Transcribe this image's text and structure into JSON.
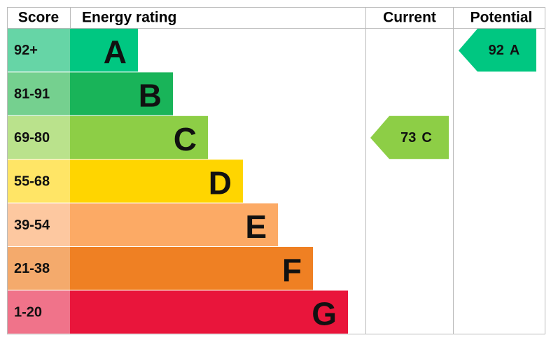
{
  "header": {
    "score": "Score",
    "energy_rating": "Energy rating",
    "current": "Current",
    "potential": "Potential"
  },
  "bands": [
    {
      "score": "92+",
      "letter": "A",
      "color": "#00c781",
      "light_color": "#66d5a6"
    },
    {
      "score": "81-91",
      "letter": "B",
      "color": "#19b459",
      "light_color": "#75d08f"
    },
    {
      "score": "69-80",
      "letter": "C",
      "color": "#8dce46",
      "light_color": "#bae28c"
    },
    {
      "score": "55-68",
      "letter": "D",
      "color": "#ffd500",
      "light_color": "#ffe566"
    },
    {
      "score": "39-54",
      "letter": "E",
      "color": "#fcaa65",
      "light_color": "#fdc8a0"
    },
    {
      "score": "21-38",
      "letter": "F",
      "color": "#ef8023",
      "light_color": "#f4aa6c"
    },
    {
      "score": "1-20",
      "letter": "G",
      "color": "#e9153b",
      "light_color": "#f0738a"
    }
  ],
  "current": {
    "value": 73,
    "letter": "C"
  },
  "potential": {
    "value": 92,
    "letter": "A"
  }
}
